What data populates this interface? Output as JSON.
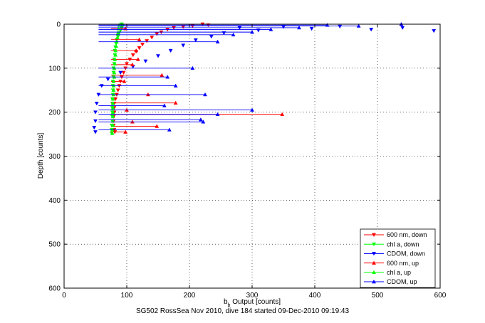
{
  "chart_data": {
    "type": "scatter",
    "title": "",
    "xlabel": "b_b Output [counts]",
    "ylabel": "Depth [counts]",
    "xlim": [
      0,
      600
    ],
    "ylim": [
      0,
      600
    ],
    "y_reversed": true,
    "x_ticks": [
      "0",
      "100",
      "200",
      "300",
      "400",
      "500",
      "600"
    ],
    "y_ticks": [
      "0",
      "100",
      "200",
      "300",
      "400",
      "500",
      "600"
    ],
    "grid": "dotted",
    "legend_placement": "bottom-right",
    "footer": "SG502 RossSea Nov 2010, dive 184 started 09-Dec-2010 09:19:43",
    "series": [
      {
        "name": "600 nm, down",
        "color": "#ff0000",
        "marker": "triangle-down",
        "lines": false,
        "points": [
          [
            221,
            0
          ],
          [
            230,
            2
          ],
          [
            205,
            4
          ],
          [
            190,
            6
          ],
          [
            175,
            8
          ],
          [
            165,
            12
          ],
          [
            155,
            18
          ],
          [
            148,
            22
          ],
          [
            140,
            30
          ],
          [
            132,
            38
          ],
          [
            125,
            46
          ],
          [
            120,
            54
          ],
          [
            115,
            62
          ],
          [
            110,
            70
          ],
          [
            105,
            80
          ],
          [
            100,
            90
          ],
          [
            98,
            100
          ],
          [
            95,
            110
          ],
          [
            92,
            120
          ],
          [
            90,
            130
          ],
          [
            88,
            140
          ],
          [
            86,
            150
          ],
          [
            84,
            160
          ],
          [
            82,
            170
          ],
          [
            80,
            180
          ],
          [
            80,
            190
          ],
          [
            80,
            200
          ],
          [
            79,
            210
          ],
          [
            79,
            220
          ],
          [
            79,
            230
          ],
          [
            80,
            240
          ],
          [
            81,
            245
          ]
        ]
      },
      {
        "name": "chl a, down",
        "color": "#00ff00",
        "marker": "triangle-down",
        "lines": false,
        "points": [
          [
            92,
            0
          ],
          [
            93,
            4
          ],
          [
            92,
            8
          ],
          [
            90,
            14
          ],
          [
            88,
            20
          ],
          [
            86,
            28
          ],
          [
            84,
            36
          ],
          [
            83,
            44
          ],
          [
            82,
            52
          ],
          [
            81,
            60
          ],
          [
            81,
            70
          ],
          [
            80,
            80
          ],
          [
            80,
            90
          ],
          [
            79,
            100
          ],
          [
            79,
            110
          ],
          [
            79,
            120
          ],
          [
            78,
            130
          ],
          [
            78,
            140
          ],
          [
            78,
            150
          ],
          [
            78,
            160
          ],
          [
            77,
            170
          ],
          [
            77,
            180
          ],
          [
            77,
            190
          ],
          [
            77,
            200
          ],
          [
            77,
            210
          ],
          [
            77,
            220
          ],
          [
            76,
            230
          ],
          [
            76,
            240
          ],
          [
            76,
            248
          ]
        ]
      },
      {
        "name": "CDOM, down",
        "color": "#0000ff",
        "marker": "triangle-down",
        "lines": false,
        "points": [
          [
            590,
            15
          ],
          [
            540,
            8
          ],
          [
            490,
            12
          ],
          [
            440,
            5
          ],
          [
            395,
            10
          ],
          [
            350,
            6
          ],
          [
            310,
            14
          ],
          [
            280,
            8
          ],
          [
            255,
            20
          ],
          [
            235,
            28
          ],
          [
            210,
            36
          ],
          [
            190,
            48
          ],
          [
            170,
            60
          ],
          [
            150,
            72
          ],
          [
            130,
            84
          ],
          [
            110,
            96
          ],
          [
            90,
            110
          ],
          [
            70,
            125
          ],
          [
            60,
            140
          ],
          [
            55,
            160
          ],
          [
            52,
            180
          ],
          [
            50,
            200
          ],
          [
            50,
            220
          ],
          [
            48,
            235
          ],
          [
            50,
            245
          ]
        ]
      },
      {
        "name": "600 nm, up",
        "color": "#ff0000",
        "marker": "triangle-up",
        "lines": true,
        "points": [
          [
            98,
            10
          ],
          [
            120,
            35
          ],
          [
            115,
            60
          ],
          [
            118,
            80
          ],
          [
            109,
            92
          ],
          [
            156,
            116
          ],
          [
            96,
            130
          ],
          [
            134,
            160
          ],
          [
            178,
            179
          ],
          [
            100,
            195
          ],
          [
            348,
            205
          ],
          [
            109,
            222
          ],
          [
            148,
            232
          ],
          [
            98,
            245
          ]
        ],
        "baseline_x": 75
      },
      {
        "name": "chl a, up",
        "color": "#00ff00",
        "marker": "triangle-up",
        "lines": false,
        "points": [
          [
            88,
            2
          ],
          [
            87,
            10
          ],
          [
            86,
            20
          ],
          [
            85,
            30
          ],
          [
            84,
            40
          ],
          [
            83,
            50
          ],
          [
            82,
            60
          ],
          [
            82,
            70
          ],
          [
            81,
            80
          ],
          [
            81,
            90
          ],
          [
            80,
            100
          ],
          [
            80,
            110
          ],
          [
            80,
            120
          ],
          [
            79,
            130
          ],
          [
            79,
            140
          ],
          [
            79,
            150
          ],
          [
            79,
            160
          ],
          [
            78,
            170
          ],
          [
            78,
            180
          ],
          [
            78,
            190
          ],
          [
            78,
            200
          ],
          [
            78,
            210
          ],
          [
            78,
            220
          ],
          [
            78,
            230
          ],
          [
            77,
            240
          ],
          [
            77,
            248
          ]
        ]
      },
      {
        "name": "CDOM, up",
        "color": "#0000ff",
        "marker": "triangle-up",
        "lines": true,
        "points": [
          [
            538,
            0
          ],
          [
            470,
            4
          ],
          [
            420,
            2
          ],
          [
            375,
            8
          ],
          [
            330,
            12
          ],
          [
            300,
            18
          ],
          [
            270,
            24
          ],
          [
            245,
            40
          ],
          [
            205,
            100
          ],
          [
            165,
            120
          ],
          [
            178,
            140
          ],
          [
            225,
            160
          ],
          [
            160,
            185
          ],
          [
            300,
            195
          ],
          [
            245,
            205
          ],
          [
            218,
            217
          ],
          [
            222,
            222
          ],
          [
            168,
            240
          ]
        ],
        "baseline_x": 55
      }
    ]
  }
}
